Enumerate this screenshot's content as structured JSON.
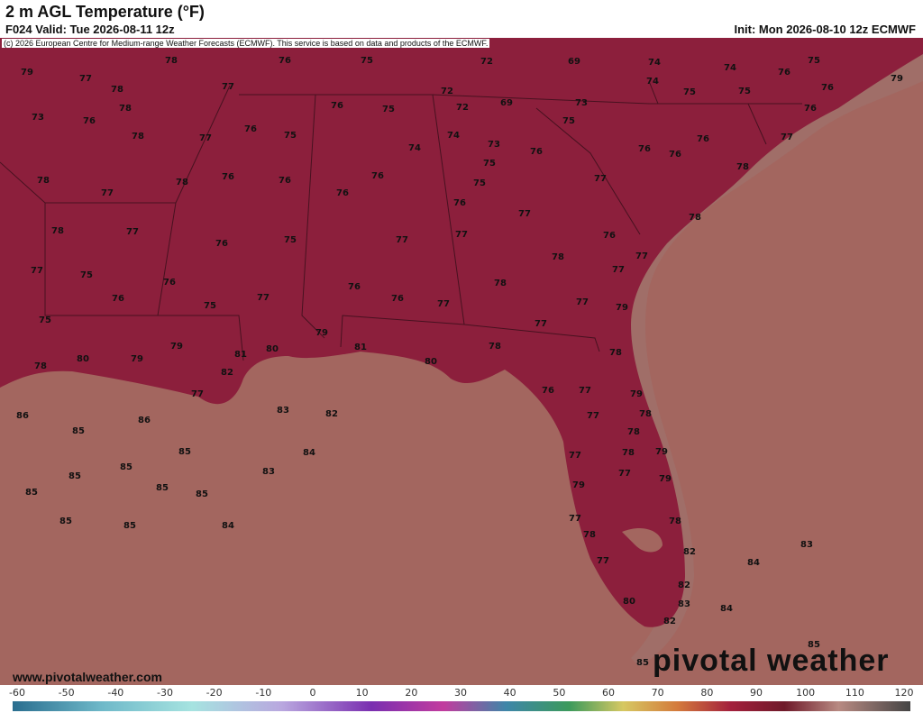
{
  "header": {
    "title": "2 m AGL Temperature (°F)",
    "valid": "F024 Valid: Tue 2026-08-11 12z",
    "init": "Init: Mon 2026-08-10 12z ECMWF",
    "copyright": "(c) 2026 European Centre for Medium-range Weather Forecasts (ECMWF). This service is based on data and products of the ECMWF."
  },
  "footer": {
    "website": "www.pivotalweather.com",
    "brand": "pivotal weather"
  },
  "colorbar": {
    "ticks": [
      -60,
      -50,
      -40,
      -30,
      -20,
      -10,
      0,
      10,
      20,
      30,
      40,
      50,
      60,
      70,
      80,
      90,
      100,
      110,
      120
    ]
  },
  "temperatures": [
    79,
    77,
    78,
    76,
    75,
    72,
    69,
    74,
    74,
    76,
    75,
    79,
    78,
    77,
    72,
    74,
    75,
    75,
    76,
    73,
    76,
    78,
    76,
    75,
    72,
    69,
    73,
    75,
    76,
    78,
    77,
    76,
    75,
    74,
    74,
    73,
    76,
    76,
    76,
    76,
    77,
    78,
    77,
    78,
    76,
    76,
    76,
    76,
    75,
    75,
    77,
    78,
    76,
    77,
    78,
    78,
    77,
    76,
    75,
    77,
    77,
    76,
    77,
    75,
    76,
    78,
    77,
    77,
    76,
    75,
    77,
    76,
    76,
    77,
    78,
    77,
    75,
    79,
    77,
    79,
    79,
    81,
    80,
    81,
    78,
    78,
    78,
    80,
    79,
    82,
    80,
    77,
    76,
    77,
    79,
    86,
    86,
    83,
    82,
    77,
    78,
    85,
    78,
    85,
    84,
    77,
    78,
    79,
    85,
    85,
    83,
    77,
    79,
    85,
    85,
    85,
    79,
    85,
    85,
    84,
    77,
    78,
    78,
    83,
    82,
    84,
    77,
    82,
    80,
    83,
    84,
    82,
    85,
    85
  ]
}
